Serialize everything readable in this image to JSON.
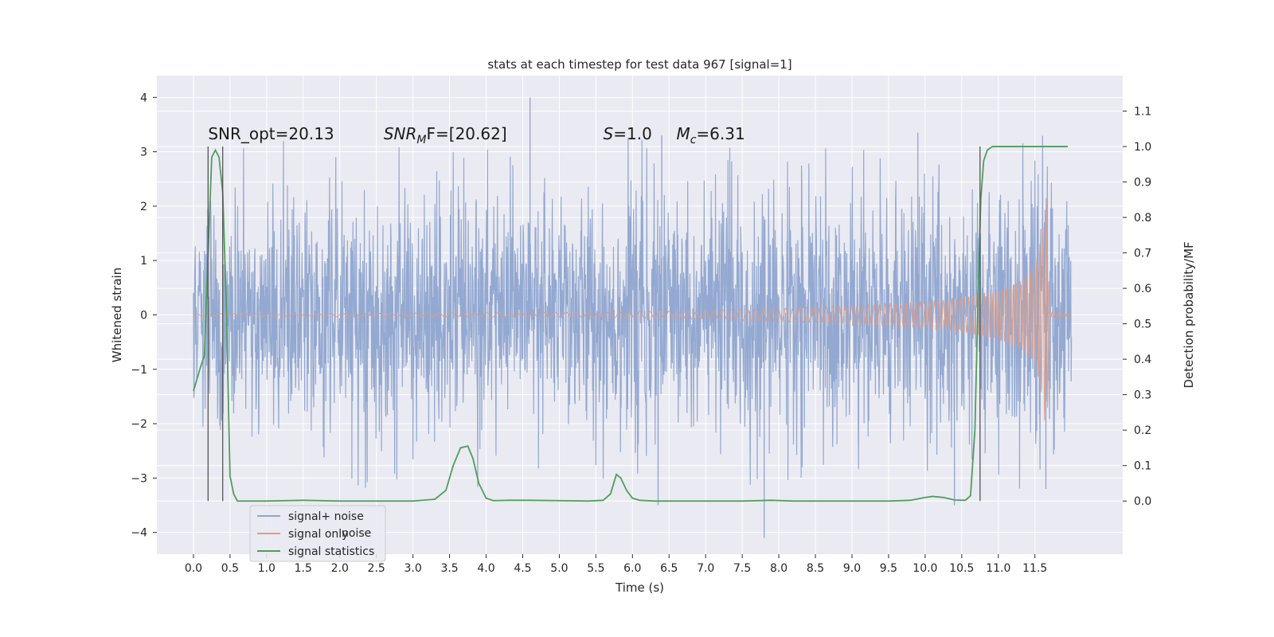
{
  "chart_data": {
    "type": "line",
    "title": "stats at each timestep for test data 967 [signal=1]",
    "xlabel": "Time (s)",
    "ylabel": "Whitened strain",
    "y2label": "Detection probability/MF",
    "xlim": [
      -0.5,
      12.7
    ],
    "ylim": [
      -4.4,
      4.4
    ],
    "y2lim": [
      -0.15,
      1.2
    ],
    "x_ticks": [
      0.0,
      0.5,
      1.0,
      1.5,
      2.0,
      2.5,
      3.0,
      3.5,
      4.0,
      4.5,
      5.0,
      5.5,
      6.0,
      6.5,
      7.0,
      7.5,
      8.0,
      8.5,
      9.0,
      9.5,
      10.0,
      10.5,
      11.0,
      11.5
    ],
    "x_tick_labels": [
      "0.0",
      "0.5",
      "1.0",
      "1.5",
      "2.0",
      "2.5",
      "3.0",
      "3.5",
      "4.0",
      "4.5",
      "5.0",
      "5.5",
      "6.0",
      "6.5",
      "7.0",
      "7.5",
      "8.0",
      "8.5",
      "9.0",
      "9.5",
      "10.0",
      "10.5",
      "11.0",
      "11.5"
    ],
    "y_ticks": [
      -4,
      -3,
      -2,
      -1,
      0,
      1,
      2,
      3,
      4
    ],
    "y_tick_labels": [
      "−4",
      "−3",
      "−2",
      "−1",
      "0",
      "1",
      "2",
      "3",
      "4"
    ],
    "y2_ticks": [
      0.0,
      0.1,
      0.2,
      0.3,
      0.4,
      0.5,
      0.6,
      0.7,
      0.8,
      0.9,
      1.0,
      1.1
    ],
    "y2_tick_labels": [
      "0.0",
      "0.1",
      "0.2",
      "0.3",
      "0.4",
      "0.5",
      "0.6",
      "0.7",
      "0.8",
      "0.9",
      "1.0",
      "1.1"
    ],
    "grid": true,
    "legend_position": "bottom-left",
    "annotations": [
      {
        "text": "SNR_opt=20.13",
        "x": 0.2,
        "y2": 1.02
      },
      {
        "text": "SNR_MF=[20.62]",
        "base": "SNR",
        "sub": "M",
        "rest": "F=[20.62]",
        "x": 2.6,
        "y2": 1.02
      },
      {
        "text": "S=1.0",
        "base": "S",
        "rest": "=1.0",
        "x": 5.6,
        "y2": 1.02
      },
      {
        "text": "M_c=6.31",
        "base": "M",
        "sub": "c",
        "rest": "=6.31",
        "x": 6.6,
        "y2": 1.02
      }
    ],
    "series": [
      {
        "name": "signal+ noise",
        "color": "#8fa5cf",
        "t_end": 12.0,
        "amplitude_envelope": {
          "x": [
            0.0,
            2.0,
            4.5,
            7.0,
            9.5,
            10.5,
            11.0,
            11.5,
            11.65,
            11.7,
            12.0
          ],
          "y": [
            1.8,
            1.9,
            2.0,
            2.0,
            2.0,
            2.1,
            2.2,
            2.4,
            2.6,
            2.1,
            1.9
          ]
        },
        "notable_peaks": [
          [
            4.6,
            4.0
          ],
          [
            6.4,
            3.3
          ],
          [
            7.8,
            -4.1
          ],
          [
            6.35,
            -3.5
          ],
          [
            10.4,
            -3.5
          ],
          [
            9.9,
            3.35
          ],
          [
            11.65,
            -3.2
          ]
        ]
      },
      {
        "name": "signal only",
        "color": "#dd9c86",
        "envelope": {
          "x": [
            0.0,
            2.0,
            4.0,
            6.0,
            7.0,
            8.0,
            9.0,
            10.0,
            10.5,
            11.0,
            11.3,
            11.5,
            11.6,
            11.65,
            11.68,
            11.7,
            12.0
          ],
          "y": [
            0.02,
            0.03,
            0.04,
            0.06,
            0.08,
            0.12,
            0.17,
            0.24,
            0.31,
            0.45,
            0.62,
            0.9,
            1.5,
            2.2,
            1.6,
            0.05,
            0.02
          ]
        }
      },
      {
        "name": "signal statistics",
        "color": "#4f9e5b",
        "axis": "right",
        "x": [
          0.0,
          0.1,
          0.15,
          0.2,
          0.25,
          0.3,
          0.35,
          0.4,
          0.45,
          0.5,
          0.55,
          0.6,
          0.7,
          0.8,
          1.0,
          1.5,
          2.0,
          2.5,
          3.0,
          3.3,
          3.45,
          3.55,
          3.65,
          3.75,
          3.82,
          3.9,
          4.0,
          4.1,
          4.3,
          4.6,
          5.0,
          5.4,
          5.6,
          5.7,
          5.78,
          5.84,
          5.92,
          6.0,
          6.1,
          6.3,
          6.6,
          7.0,
          7.5,
          7.9,
          8.2,
          8.6,
          9.0,
          9.5,
          9.8,
          10.0,
          10.1,
          10.25,
          10.4,
          10.55,
          10.62,
          10.68,
          10.72,
          10.76,
          10.8,
          10.85,
          10.92,
          11.0,
          11.2,
          11.5,
          11.7,
          11.95
        ],
        "y": [
          0.31,
          0.38,
          0.41,
          0.7,
          0.97,
          0.99,
          0.97,
          0.87,
          0.55,
          0.07,
          0.02,
          0.0,
          0.0,
          0.0,
          0.0,
          0.002,
          0.0,
          0.0,
          0.0,
          0.005,
          0.03,
          0.1,
          0.15,
          0.155,
          0.12,
          0.05,
          0.008,
          0.001,
          0.002,
          0.002,
          0.001,
          0.0,
          0.002,
          0.02,
          0.075,
          0.065,
          0.03,
          0.008,
          0.002,
          0.0,
          0.0,
          0.0,
          0.0,
          0.002,
          0.0,
          0.0,
          0.0,
          0.0,
          0.002,
          0.01,
          0.013,
          0.01,
          0.003,
          0.002,
          0.015,
          0.2,
          0.55,
          0.85,
          0.96,
          0.99,
          1.0,
          1.0,
          1.0,
          1.0,
          1.0,
          1.0
        ]
      }
    ],
    "vertical_markers": [
      {
        "x": 0.2,
        "y2_from": -0.0,
        "y2_to": 1.0,
        "color": "#555555"
      },
      {
        "x": 0.4,
        "y2_from": -0.0,
        "y2_to": 1.0,
        "color": "#555555"
      },
      {
        "x": 10.75,
        "y2_from": -0.0,
        "y2_to": 1.0,
        "color": "#555555"
      }
    ],
    "legend_ghost_text": "noise"
  }
}
